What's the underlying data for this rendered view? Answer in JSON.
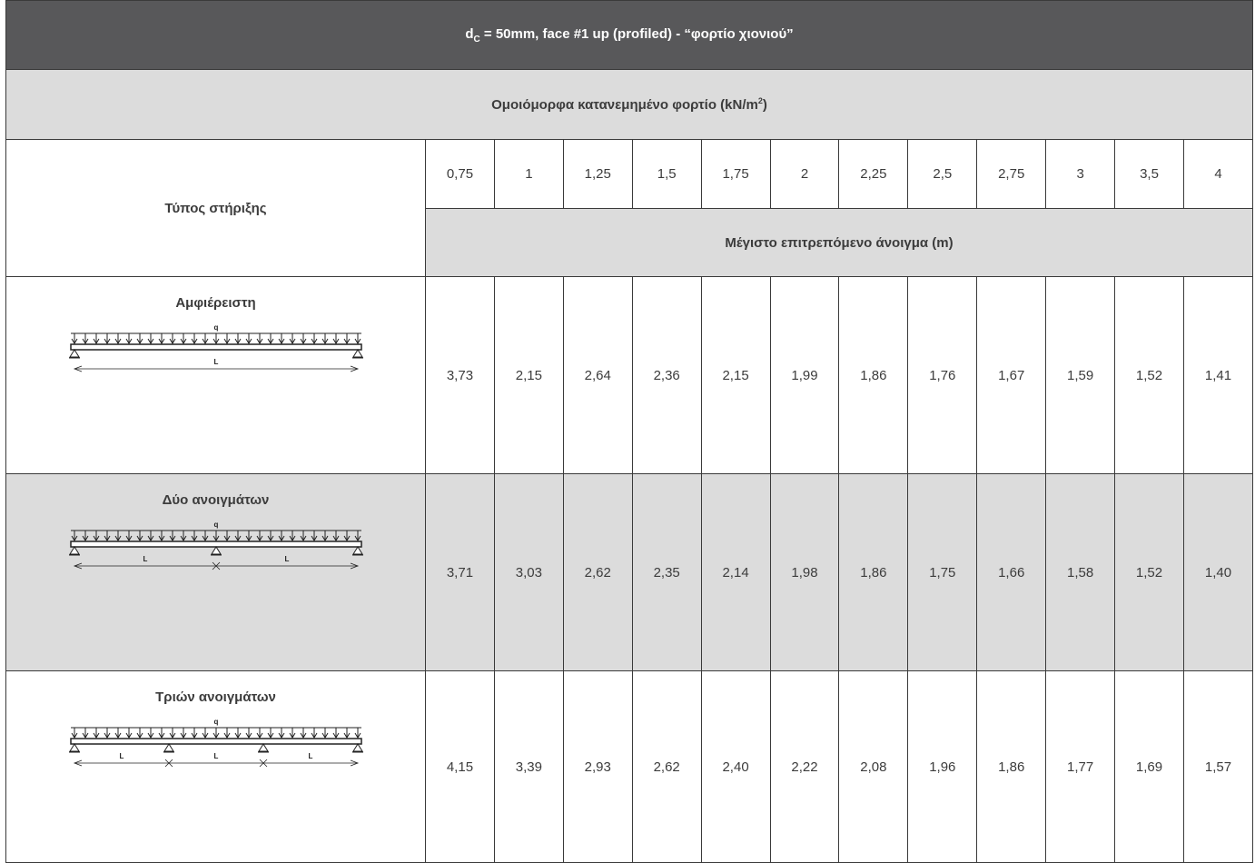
{
  "title": {
    "d": "d",
    "sub": "C",
    "rest": " = 50mm, face #1 up (profiled) - “φορτίο χιονιού”"
  },
  "subtitle": {
    "text": "Ομοιόμορφα κατανεμημένο φορτίο (kN/m",
    "sup": "2",
    "close": ")"
  },
  "support_type_label": "Τύπος στήριξης",
  "span_label": "Μέγιστο επιτρεπόμενο άνοιγμα (m)",
  "loads": [
    "0,75",
    "1",
    "1,25",
    "1,5",
    "1,75",
    "2",
    "2,25",
    "2,5",
    "2,75",
    "3",
    "3,5",
    "4"
  ],
  "diagram": {
    "load": "q",
    "span": "L"
  },
  "rows": [
    {
      "name": "Αμφιέρειστη",
      "values": [
        "3,73",
        "2,15",
        "2,64",
        "2,36",
        "2,15",
        "1,99",
        "1,86",
        "1,76",
        "1,67",
        "1,59",
        "1,52",
        "1,41"
      ]
    },
    {
      "name": "Δύο ανοιγμάτων",
      "values": [
        "3,71",
        "3,03",
        "2,62",
        "2,35",
        "2,14",
        "1,98",
        "1,86",
        "1,75",
        "1,66",
        "1,58",
        "1,52",
        "1,40"
      ]
    },
    {
      "name": "Τριών ανοιγμάτων",
      "values": [
        "4,15",
        "3,39",
        "2,93",
        "2,62",
        "2,40",
        "2,22",
        "2,08",
        "1,96",
        "1,86",
        "1,77",
        "1,69",
        "1,57"
      ]
    }
  ],
  "colors": {
    "header_bg": "#58585a",
    "shade_bg": "#dcdcdc",
    "border": "#3a3a3a"
  }
}
